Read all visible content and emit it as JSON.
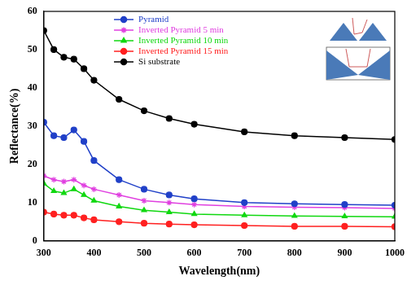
{
  "chart_data": {
    "type": "line",
    "x_label": "Wavelength(nm)",
    "y_label": "Reflectance(%)",
    "x": [
      300,
      320,
      340,
      360,
      380,
      400,
      450,
      500,
      550,
      600,
      700,
      800,
      900,
      1000
    ],
    "series": [
      {
        "name": "Pyramid",
        "color": "#2040c8",
        "marker": "circle",
        "line_style": "solid",
        "values": [
          31,
          27.5,
          27,
          29,
          26,
          21,
          16,
          13.5,
          12,
          11,
          10,
          9.7,
          9.5,
          9.3
        ]
      },
      {
        "name": "Inverted Pyramid 5 min",
        "color": "#e040e0",
        "marker": "star",
        "line_style": "solid",
        "values": [
          17,
          16,
          15.5,
          16,
          14.5,
          13.5,
          12,
          10.5,
          10,
          9.5,
          9,
          8.8,
          8.7,
          8.5
        ]
      },
      {
        "name": "Inverted Pyramid 10 min",
        "color": "#10d810",
        "marker": "triangle",
        "line_style": "solid",
        "values": [
          15,
          13,
          12.5,
          13.5,
          12,
          10.5,
          9,
          8,
          7.5,
          7,
          6.7,
          6.5,
          6.4,
          6.3
        ]
      },
      {
        "name": "Inverted Pyramid 15 min",
        "color": "#ff2020",
        "marker": "circle",
        "line_style": "solid",
        "values": [
          7.5,
          7,
          6.7,
          6.7,
          6,
          5.5,
          5,
          4.6,
          4.4,
          4.2,
          4,
          3.8,
          3.8,
          3.7
        ]
      },
      {
        "name": "Si substrate",
        "color": "#000000",
        "marker": "circle",
        "line_style": "solid",
        "values": [
          55,
          50,
          48,
          47.5,
          45,
          42,
          37,
          34,
          32,
          30.5,
          28.5,
          27.5,
          27,
          26.5
        ]
      }
    ],
    "xlim": [
      300,
      1000
    ],
    "xticks": [
      300,
      400,
      500,
      600,
      700,
      800,
      900,
      1000
    ],
    "ylim": [
      0,
      60
    ],
    "yticks": [
      0,
      10,
      20,
      30,
      40,
      50,
      60
    ],
    "grid": false,
    "legend": "upper center"
  }
}
